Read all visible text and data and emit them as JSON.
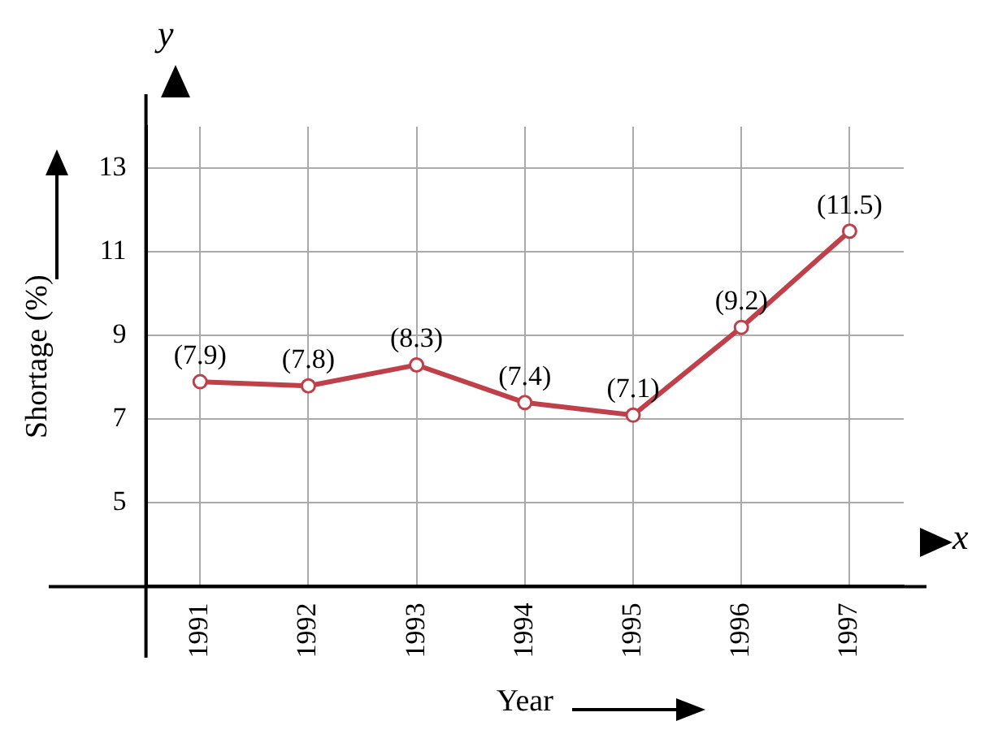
{
  "chart_data": {
    "type": "line",
    "xlabel": "Year",
    "ylabel": "Shortage (%)",
    "categories": [
      "1991",
      "1992",
      "1993",
      "1994",
      "1995",
      "1996",
      "1997"
    ],
    "series": [
      {
        "color": "#c0404a",
        "values": [
          7.9,
          7.8,
          8.3,
          7.4,
          7.1,
          9.2,
          11.5
        ],
        "value_labels": [
          "(7.9)",
          "(7.8)",
          "(8.3)",
          "(7.4)",
          "(7.1)",
          "(9.2)",
          "(11.5)"
        ]
      }
    ],
    "ylim": [
      3,
      14
    ],
    "yticks": [
      5,
      7,
      9,
      11,
      13
    ],
    "grid": true,
    "legend": false,
    "marker": "circle",
    "line_style": "solid",
    "annotations": [
      "y",
      "x"
    ]
  }
}
